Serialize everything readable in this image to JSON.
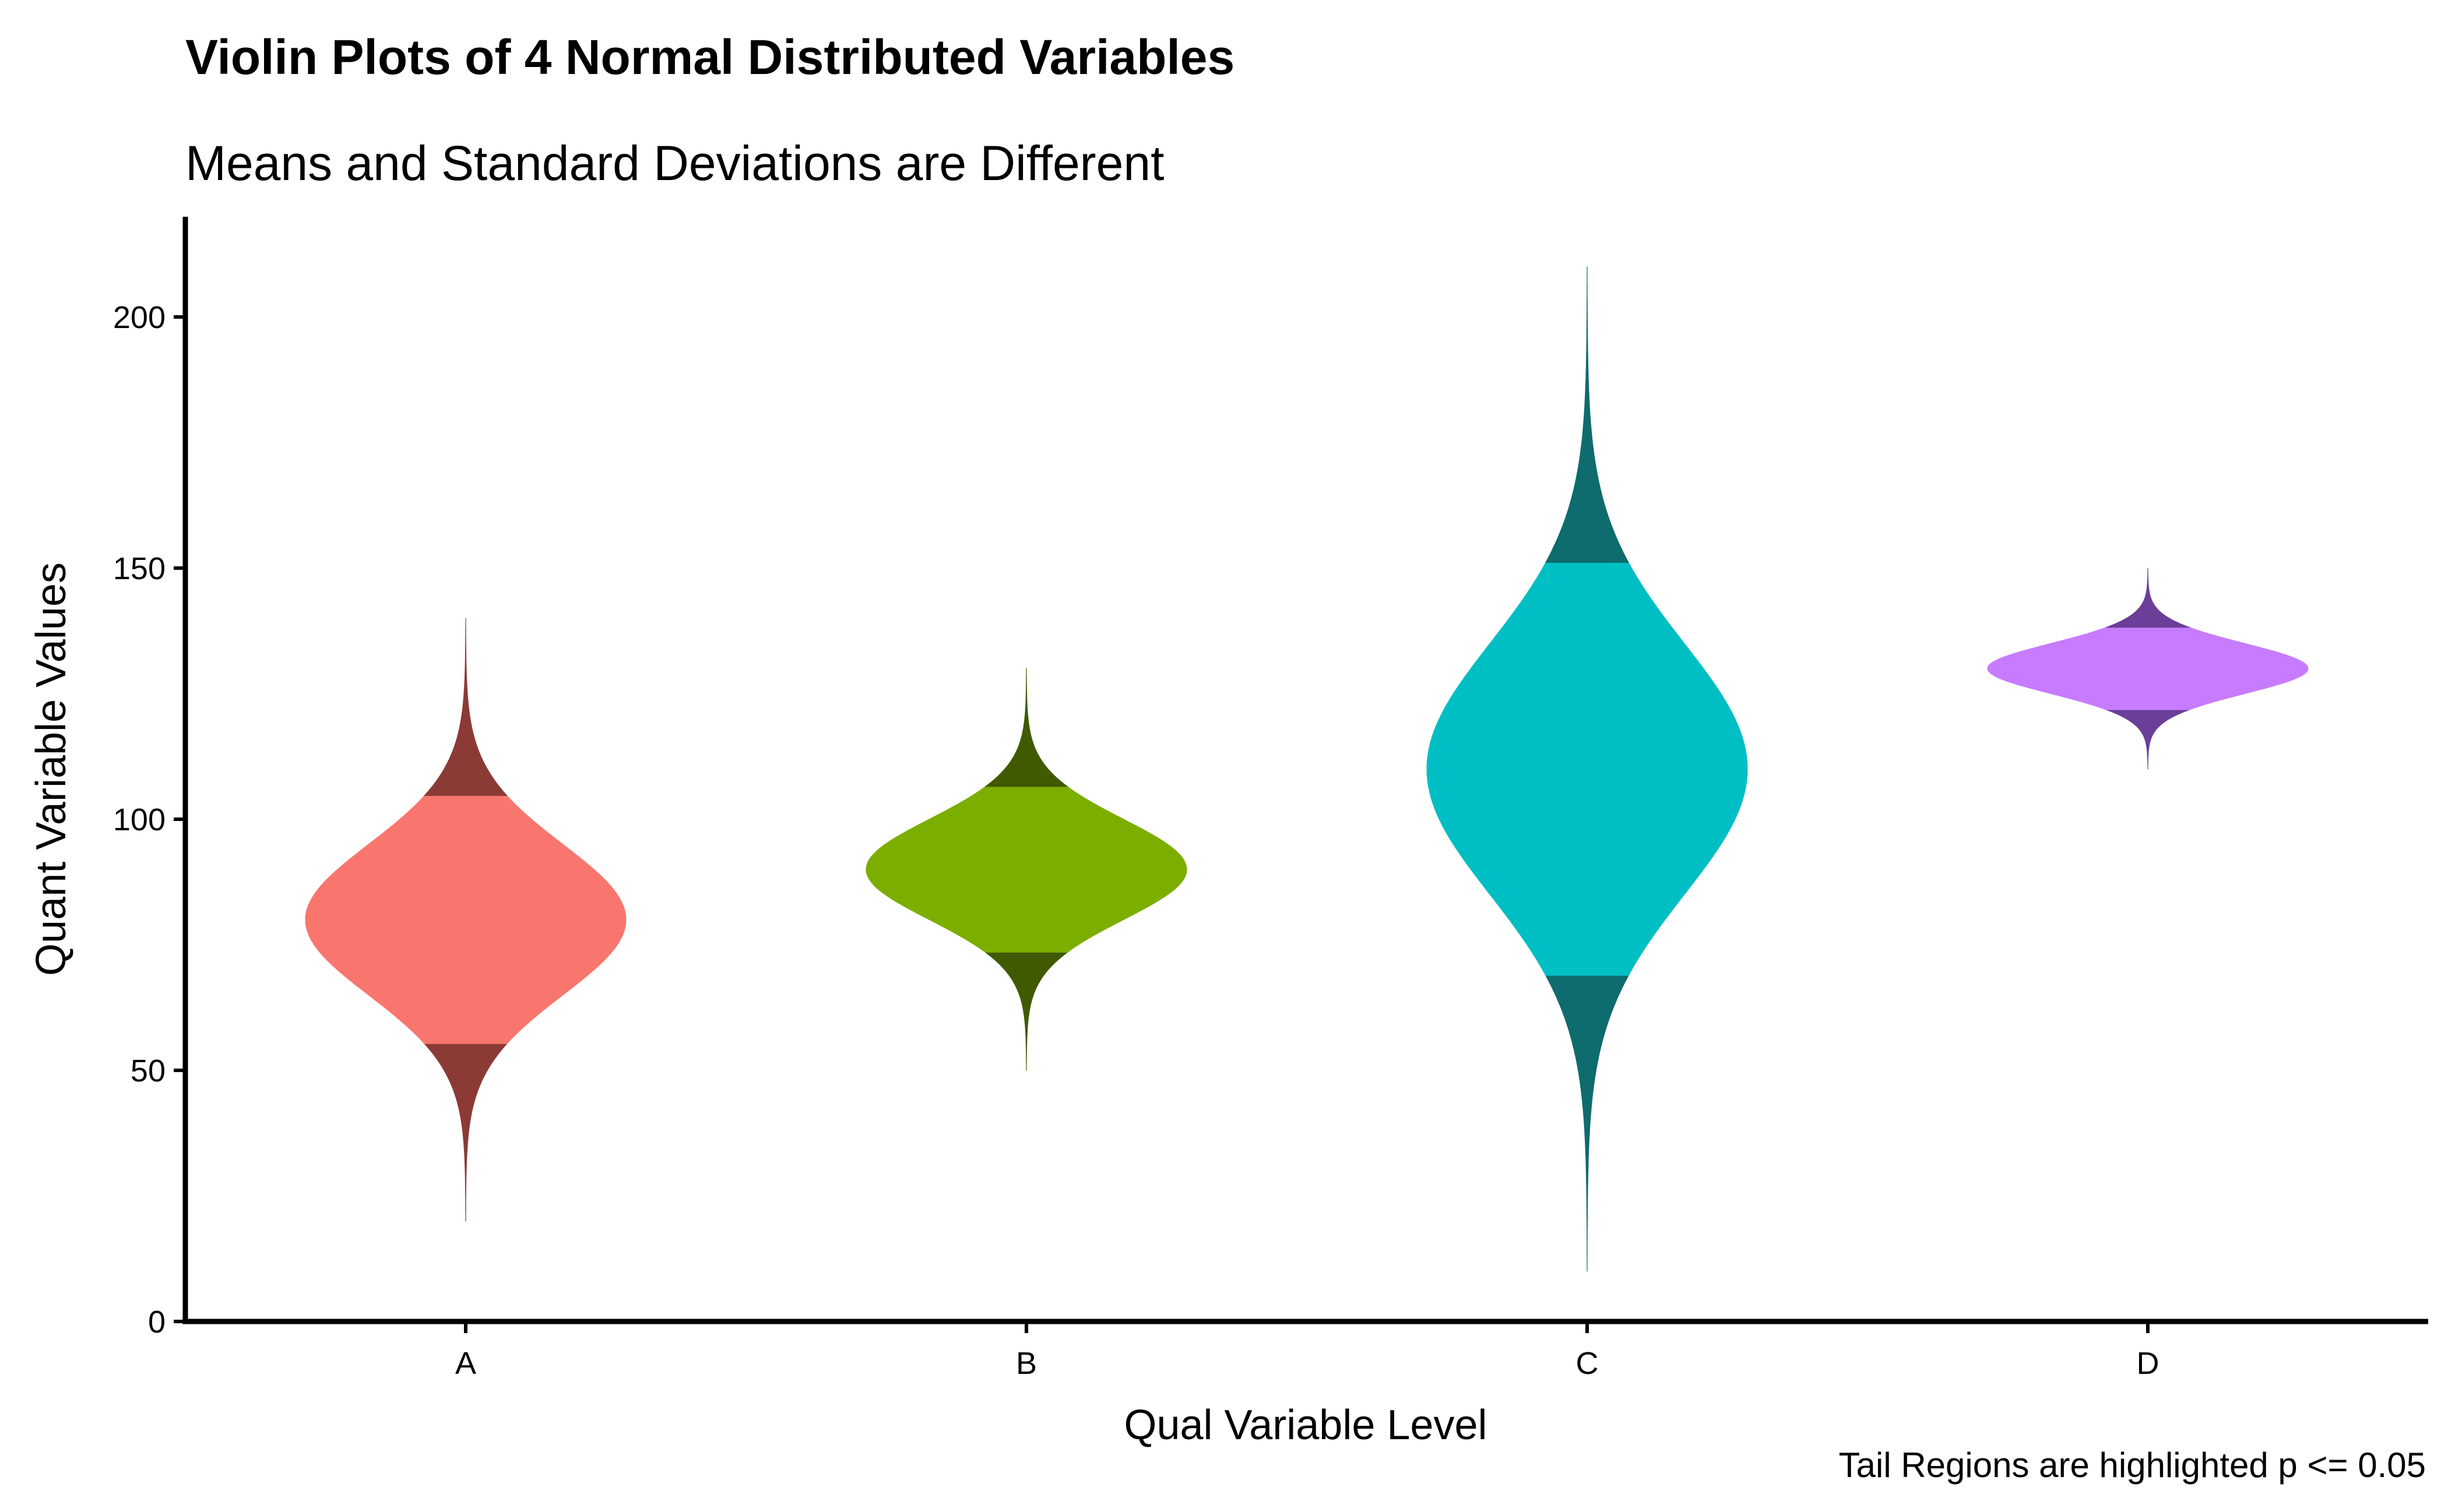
{
  "chart_data": {
    "type": "violin",
    "title": "Violin Plots of 4 Normal Distributed Variables",
    "subtitle": "Means and Standard Deviations are Different",
    "caption": "Tail Regions are highlighted p <= 0.05",
    "xlabel": "Qual Variable Level",
    "ylabel": "Quant Variable Values",
    "categories": [
      "A",
      "B",
      "C",
      "D"
    ],
    "ylim": [
      0,
      220
    ],
    "yticks": [
      0,
      50,
      100,
      150,
      200
    ],
    "grid": false,
    "legend": "none",
    "series": [
      {
        "category": "A",
        "mean": 80,
        "sd": 15,
        "min": 20,
        "max": 140,
        "lower_tail": 55.3,
        "upper_tail": 104.7,
        "color": "#F8766D",
        "tail_color": "#8B3A36"
      },
      {
        "category": "B",
        "mean": 90,
        "sd": 10,
        "min": 50,
        "max": 130,
        "lower_tail": 73.5,
        "upper_tail": 106.5,
        "color": "#7CAE00",
        "tail_color": "#3F5A00"
      },
      {
        "category": "C",
        "mean": 110,
        "sd": 25,
        "min": 10,
        "max": 210,
        "lower_tail": 68.9,
        "upper_tail": 151.1,
        "color": "#00BFC4",
        "tail_color": "#0E6B6E"
      },
      {
        "category": "D",
        "mean": 130,
        "sd": 5,
        "min": 110,
        "max": 150,
        "lower_tail": 121.8,
        "upper_tail": 138.2,
        "color": "#C77CFF",
        "tail_color": "#6B3E99"
      }
    ]
  }
}
